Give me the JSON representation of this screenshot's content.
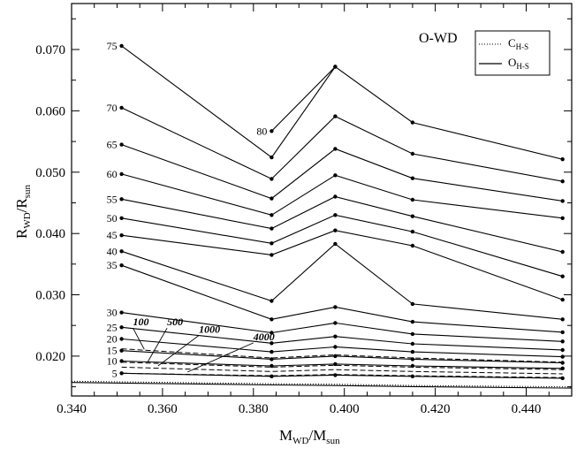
{
  "chart_data": {
    "type": "line",
    "title": "O-WD",
    "xlabel": "M_WD/M_sun",
    "ylabel": "R_WD/R_sun",
    "xlabel_parts": {
      "main_a": "M",
      "sub_a": "WD",
      "mid": "/M",
      "sub_b": "sun"
    },
    "ylabel_parts": {
      "main_a": "R",
      "sub_a": "WD",
      "mid": "/R",
      "sub_b": "sun"
    },
    "xlim": [
      0.34,
      0.45
    ],
    "ylim": [
      0.0135,
      0.0775
    ],
    "x_ticks": [
      "0.340",
      "0.360",
      "0.380",
      "0.400",
      "0.420",
      "0.440"
    ],
    "y_ticks": [
      "0.020",
      "0.030",
      "0.040",
      "0.050",
      "0.060",
      "0.070"
    ],
    "grid": false,
    "legend_position": "top-right",
    "legend": [
      {
        "main": "C",
        "sub": "H-S",
        "style": "dotted"
      },
      {
        "main": "O",
        "sub": "H-S",
        "style": "solid"
      }
    ],
    "x": [
      0.351,
      0.384,
      0.398,
      0.415,
      0.448
    ],
    "series": [
      {
        "name": "75",
        "values": [
          0.0706,
          0.0524,
          0.0672,
          0.0581,
          0.0521
        ]
      },
      {
        "name": "80",
        "values": [
          null,
          null,
          null,
          null,
          null
        ],
        "points": [
          [
            0.384,
            0.0567
          ],
          [
            0.398,
            0.0672
          ]
        ]
      },
      {
        "name": "70",
        "values": [
          0.0605,
          0.0489,
          0.0591,
          0.053,
          0.0485
        ]
      },
      {
        "name": "65",
        "values": [
          0.0545,
          0.0457,
          0.0538,
          0.049,
          0.0453
        ]
      },
      {
        "name": "60",
        "values": [
          0.0497,
          0.043,
          0.0495,
          0.0455,
          0.0425
        ]
      },
      {
        "name": "55",
        "values": [
          0.0456,
          0.0408,
          0.046,
          0.0428,
          0.037
        ]
      },
      {
        "name": "50",
        "values": [
          0.0425,
          0.0384,
          0.043,
          0.0403,
          0.033
        ]
      },
      {
        "name": "45",
        "values": [
          0.0397,
          0.0365,
          0.0405,
          0.038,
          0.0292
        ]
      },
      {
        "name": "40",
        "values": [
          0.0371,
          0.029,
          0.0383,
          0.0285,
          0.026
        ]
      },
      {
        "name": "35",
        "values": [
          0.0348,
          0.026,
          0.028,
          0.0256,
          0.0239
        ]
      },
      {
        "name": "30",
        "values": [
          0.0271,
          0.0238,
          0.0254,
          0.0236,
          0.0224
        ]
      },
      {
        "name": "25",
        "values": [
          0.0247,
          0.0221,
          0.0232,
          0.022,
          0.021
        ]
      },
      {
        "name": "20",
        "values": [
          0.0228,
          0.0207,
          0.0215,
          0.0207,
          0.0199
        ]
      },
      {
        "name": "15",
        "values": [
          0.0209,
          0.0195,
          0.02,
          0.0195,
          0.0189
        ]
      },
      {
        "name": "10",
        "values": [
          0.0192,
          0.0184,
          0.0187,
          0.0184,
          0.018
        ]
      },
      {
        "name": "5",
        "values": [
          0.0172,
          0.0167,
          0.0169,
          0.0167,
          0.0164
        ]
      }
    ],
    "isochrones": [
      {
        "name": "100",
        "values": [
          0.0212,
          0.0197,
          0.0202,
          0.0197,
          0.019
        ]
      },
      {
        "name": "500",
        "values": [
          0.019,
          0.0182,
          0.0185,
          0.0182,
          0.0178
        ]
      },
      {
        "name": "1000",
        "values": [
          0.0182,
          0.0175,
          0.0178,
          0.0175,
          0.0171
        ]
      },
      {
        "name": "4000",
        "values": [
          0.0172,
          0.0168,
          0.017,
          0.0168,
          0.0165
        ]
      }
    ],
    "baselines": [
      {
        "style": "dotted",
        "values": [
          0.0158,
          0.0155,
          0.01542,
          0.01522,
          0.015
        ]
      },
      {
        "style": "solid",
        "values": [
          0.0156,
          0.0153,
          0.0152,
          0.01503,
          0.0148
        ]
      }
    ]
  }
}
